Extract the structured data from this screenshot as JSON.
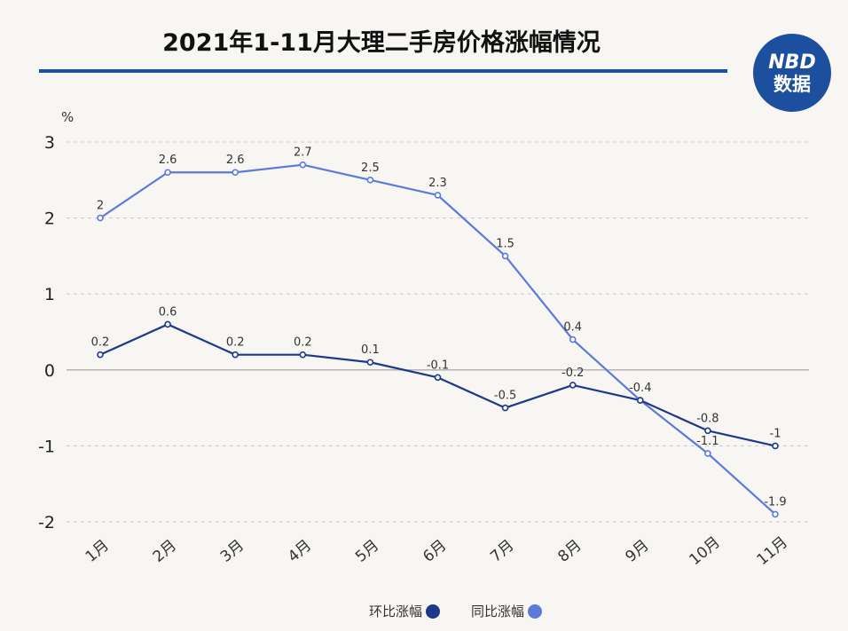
{
  "header": {
    "title": "2021年1-11月大理二手房价格涨幅情况",
    "logo_top": "NBD",
    "logo_bottom": "数据"
  },
  "colors": {
    "title_rule": "#1f4e9c",
    "logo_bg": "#1d4f9f",
    "series_mom": "#1d3a8a",
    "series_yoy": "#5b7ad9",
    "grid": "#c8c8c8",
    "zero_line": "#b8b8b8"
  },
  "chart_data": {
    "type": "line",
    "title": "2021年1-11月大理二手房价格涨幅情况",
    "ylabel": "%",
    "xlabel": "",
    "categories": [
      "1月",
      "2月",
      "3月",
      "4月",
      "5月",
      "6月",
      "7月",
      "8月",
      "9月",
      "10月",
      "11月"
    ],
    "ylim": [
      -2,
      3
    ],
    "yticks": [
      3,
      2,
      1,
      0,
      -1,
      -2
    ],
    "grid": "horizontal-dashed",
    "legend": "bottom-center",
    "series": [
      {
        "name": "环比涨幅",
        "color": "#1d3a8a",
        "values": [
          0.2,
          0.6,
          0.2,
          0.2,
          0.1,
          -0.1,
          -0.5,
          -0.2,
          -0.4,
          -0.8,
          -1
        ]
      },
      {
        "name": "同比涨幅",
        "color": "#5b7ad9",
        "values": [
          2,
          2.6,
          2.6,
          2.7,
          2.5,
          2.3,
          1.5,
          0.4,
          -0.4,
          -1.1,
          -1.9
        ]
      }
    ],
    "data_labels": [
      [
        "0.2",
        "0.6",
        "0.2",
        "0.2",
        "0.1",
        "-0.1",
        "-0.5",
        "-0.2",
        "-0.4",
        "-0.8",
        "-1"
      ],
      [
        "2",
        "2.6",
        "2.6",
        "2.7",
        "2.5",
        "2.3",
        "1.5",
        "0.4",
        "",
        "-1.1",
        "-1.9"
      ]
    ]
  }
}
